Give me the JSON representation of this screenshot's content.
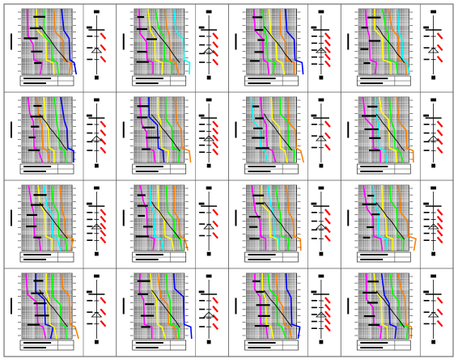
{
  "sheet": {
    "rows": 4,
    "columns": 4,
    "cells": [
      {
        "id": "r1c1",
        "curves": [
          "#ff00ff",
          "#ffff00",
          "#00ff00",
          "#ff8000",
          "#0000ff"
        ]
      },
      {
        "id": "r1c2",
        "curves": [
          "#ff00ff",
          "#ffff00",
          "#00ff00",
          "#ff8000",
          "#00ffff"
        ]
      },
      {
        "id": "r1c3",
        "curves": [
          "#ff00ff",
          "#00ff00",
          "#ffff00",
          "#ff8000",
          "#0000ff"
        ]
      },
      {
        "id": "r1c4",
        "curves": [
          "#ff00ff",
          "#ffff00",
          "#00ff00",
          "#ff8000",
          "#00ffff"
        ]
      },
      {
        "id": "r2c1",
        "curves": [
          "#ff00ff",
          "#ff8000",
          "#ffff00",
          "#00ff00",
          "#0000ff"
        ]
      },
      {
        "id": "r2c2",
        "curves": [
          "#ff00ff",
          "#0000ff",
          "#ffff00",
          "#00ff00",
          "#ff8000"
        ]
      },
      {
        "id": "r2c3",
        "curves": [
          "#00ffff",
          "#ff00ff",
          "#ffff00",
          "#00ff00",
          "#ff8000"
        ]
      },
      {
        "id": "r2c4",
        "curves": [
          "#ff00ff",
          "#00ffff",
          "#ffff00",
          "#00ff00",
          "#ff8000"
        ]
      },
      {
        "id": "r3c1",
        "curves": [
          "#ff00ff",
          "#ffff00",
          "#00ffff",
          "#00ff00",
          "#ff8000"
        ]
      },
      {
        "id": "r3c2",
        "curves": [
          "#ff00ff",
          "#00ffff",
          "#ffff00",
          "#00ff00",
          "#ff8000"
        ]
      },
      {
        "id": "r3c3",
        "curves": [
          "#ff00ff",
          "#ffff00",
          "#00ffff",
          "#00ff00",
          "#ff8000"
        ]
      },
      {
        "id": "r3c4",
        "curves": [
          "#ff00ff",
          "#00ffff",
          "#ffff00",
          "#00ff00",
          "#ff8000"
        ]
      },
      {
        "id": "r4c1",
        "curves": [
          "#ff00ff",
          "#0000ff",
          "#ffff00",
          "#00ff00",
          "#ff8000"
        ]
      },
      {
        "id": "r4c2",
        "curves": [
          "#ff00ff",
          "#ffff00",
          "#ff8000",
          "#00ff00",
          "#0000ff"
        ]
      },
      {
        "id": "r4c3",
        "curves": [
          "#ff00ff",
          "#ffff00",
          "#00ff00",
          "#ff8000",
          "#0000ff"
        ]
      },
      {
        "id": "r4c4",
        "curves": [
          "#ff00ff",
          "#ffff00",
          "#0000ff",
          "#00ff00",
          "#ff8000"
        ]
      }
    ]
  },
  "colors": {
    "grid_background": "#8f8f8f",
    "grid_lines": "#ffffff",
    "border": "#555555",
    "breaker_mark": "#ff0000",
    "ink": "#000000"
  }
}
